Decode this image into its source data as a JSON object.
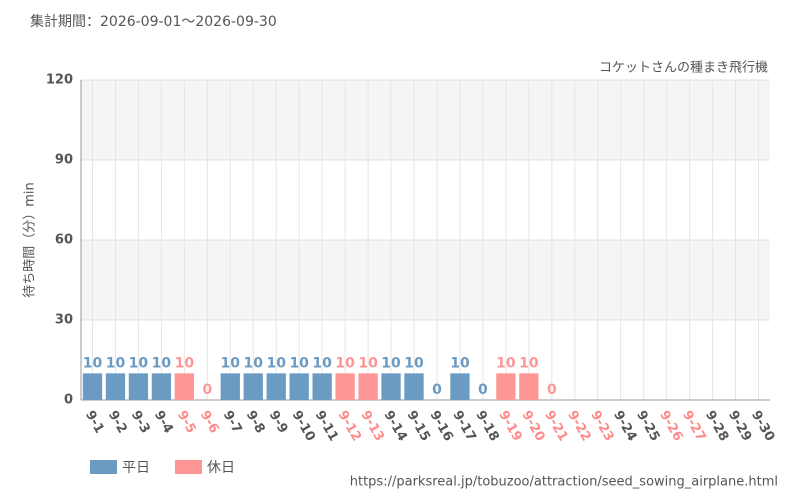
{
  "chart_data": {
    "type": "bar",
    "title": "集計期間：2026-09-01～2026-09-30",
    "subtitle": "コケットさんの種まき飛行機",
    "y_label": "待ち時間（分）min",
    "source": "https://parksreal.jp/tobuzoo/attraction/seed_sowing_airplane.html",
    "categories": [
      "9-1",
      "9-2",
      "9-3",
      "9-4",
      "9-5",
      "9-6",
      "9-7",
      "9-8",
      "9-9",
      "9-10",
      "9-11",
      "9-12",
      "9-13",
      "9-14",
      "9-15",
      "9-16",
      "9-17",
      "9-18",
      "9-19",
      "9-20",
      "9-21",
      "9-22",
      "9-23",
      "9-24",
      "9-25",
      "9-26",
      "9-27",
      "9-28",
      "9-29",
      "9-30"
    ],
    "category_label_colors": [
      "#555555",
      "#555555",
      "#555555",
      "#555555",
      "#ff8a8a",
      "#ff8a8a",
      "#555555",
      "#555555",
      "#555555",
      "#555555",
      "#555555",
      "#ff8a8a",
      "#ff8a8a",
      "#555555",
      "#555555",
      "#555555",
      "#555555",
      "#555555",
      "#ff8a8a",
      "#ff8a8a",
      "#ff8a8a",
      "#ff8a8a",
      "#ff8a8a",
      "#555555",
      "#555555",
      "#ff8a8a",
      "#ff8a8a",
      "#555555",
      "#555555",
      "#555555"
    ],
    "series": [
      {
        "name": "平日",
        "color": "#6b9bc3",
        "values": [
          10,
          10,
          10,
          10,
          null,
          null,
          10,
          10,
          10,
          10,
          10,
          null,
          null,
          10,
          10,
          0,
          10,
          0,
          null,
          null,
          null,
          null,
          null,
          null,
          null,
          null,
          null,
          null,
          null,
          null
        ]
      },
      {
        "name": "休日",
        "color": "#ff9696",
        "values": [
          null,
          null,
          null,
          null,
          10,
          0,
          null,
          null,
          null,
          null,
          null,
          10,
          10,
          null,
          null,
          null,
          null,
          null,
          10,
          10,
          0,
          null,
          null,
          null,
          null,
          null,
          null,
          null,
          null,
          null
        ]
      }
    ],
    "ylim": [
      0,
      120
    ],
    "yticks": [
      0,
      30,
      60,
      90,
      120
    ],
    "grid": true,
    "legend": "bottom-left"
  }
}
